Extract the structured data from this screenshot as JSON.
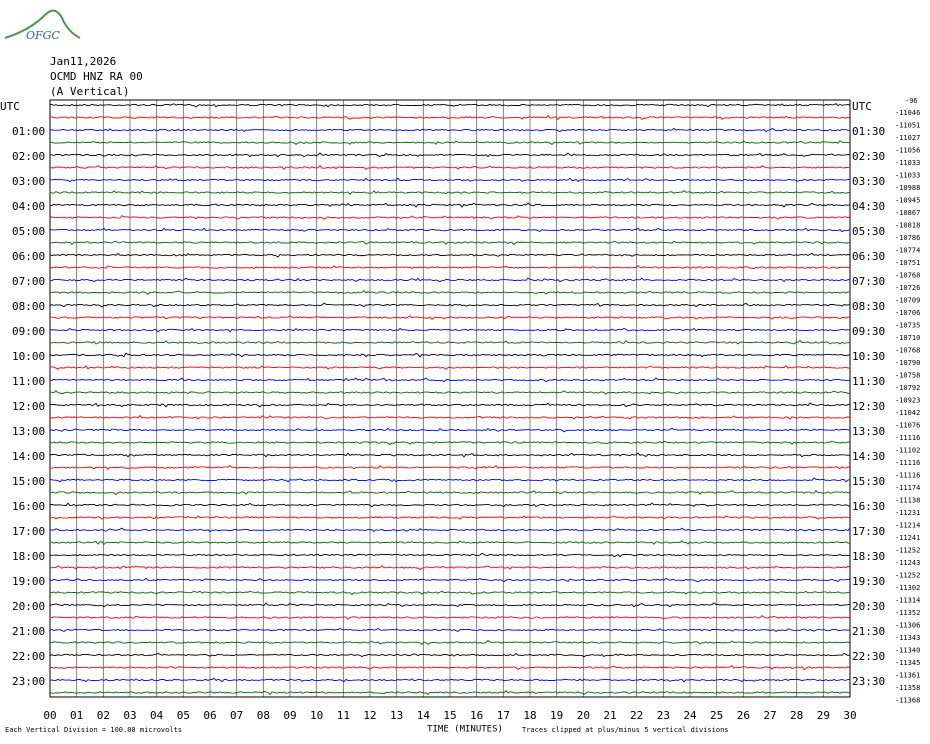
{
  "header": {
    "logo": "OFGC",
    "date": "Jan11,2026",
    "station": "OCMD HNZ RA 00",
    "component": "(A Vertical)"
  },
  "left_labels": [
    "UTC",
    "01:00",
    "02:00",
    "03:00",
    "04:00",
    "05:00",
    "06:00",
    "07:00",
    "08:00",
    "09:00",
    "10:00",
    "11:00",
    "12:00",
    "13:00",
    "14:00",
    "15:00",
    "16:00",
    "17:00",
    "18:00",
    "19:00",
    "20:00",
    "21:00",
    "22:00",
    "23:00"
  ],
  "right_labels": [
    "UTC",
    "01:30",
    "02:30",
    "03:30",
    "04:30",
    "05:30",
    "06:30",
    "07:30",
    "08:30",
    "09:30",
    "10:30",
    "11:30",
    "12:30",
    "13:30",
    "14:30",
    "15:30",
    "16:30",
    "17:30",
    "18:30",
    "19:30",
    "20:30",
    "21:30",
    "22:30",
    "23:30"
  ],
  "scale_note": "-96",
  "offsets": [
    "-11046",
    "-11051",
    "-11027",
    "-11056",
    "-11033",
    "-11033",
    "-10988",
    "-10945",
    "-10867",
    "-10818",
    "-10786",
    "-10774",
    "-10751",
    "-10768",
    "-10726",
    "-10709",
    "-10706",
    "-10735",
    "-10710",
    "-10768",
    "-10790",
    "-10758",
    "-10792",
    "-10923",
    "-11042",
    "-11076",
    "-11116",
    "-11102",
    "-11116",
    "-11116",
    "-11174",
    "-11138",
    "-11231",
    "-11214",
    "-11241",
    "-11252",
    "-11243",
    "-11252",
    "-11302",
    "-11314",
    "-11352",
    "-11306",
    "-11343",
    "-11340",
    "-11345",
    "-11361",
    "-11358",
    "-11368"
  ],
  "trace_colors": [
    "#000000",
    "#ff0000",
    "#0000ff",
    "#006400"
  ],
  "minute_labels": [
    "00",
    "01",
    "02",
    "03",
    "04",
    "05",
    "06",
    "07",
    "08",
    "09",
    "10",
    "11",
    "12",
    "13",
    "14",
    "15",
    "16",
    "17",
    "18",
    "19",
    "20",
    "21",
    "22",
    "23",
    "24",
    "25",
    "26",
    "27",
    "28",
    "29",
    "30"
  ],
  "footer": {
    "division": "Each Vertical Division =  100.00 microvolts",
    "axis_title": "TIME (MINUTES)",
    "clip_note": "Traces clipped at plus/minus 5 vertical divisions"
  }
}
